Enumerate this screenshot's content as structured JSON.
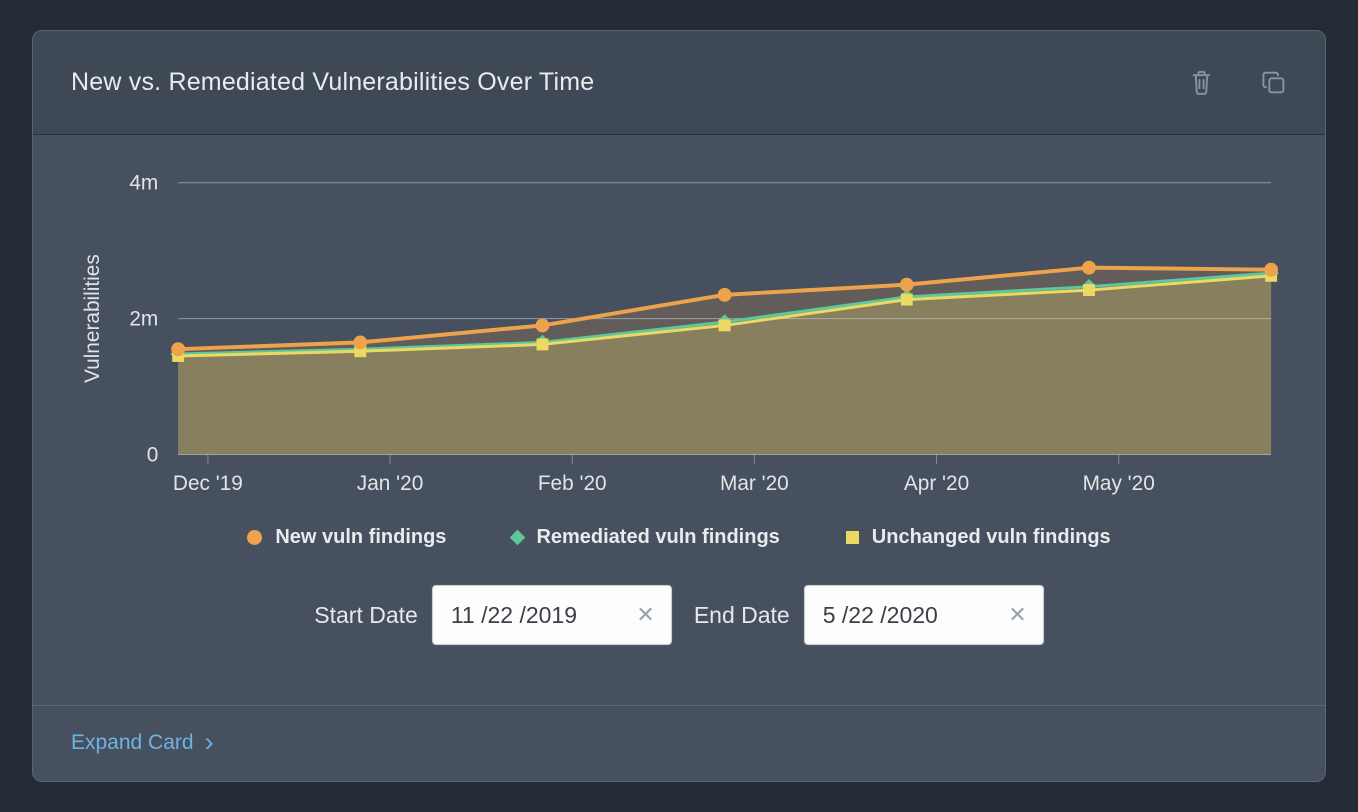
{
  "card": {
    "title": "New vs. Remediated Vulnerabilities Over Time"
  },
  "colors": {
    "new_series": "#eda24c",
    "remediated_series": "#5cc89b",
    "unchanged_series": "#ecd964",
    "link": "#6db3e3",
    "icon": "#8b94a1"
  },
  "chart_data": {
    "type": "line",
    "title": "New vs. Remediated Vulnerabilities Over Time",
    "xlabel": "",
    "ylabel": "Vulnerabilities",
    "unit": "millions",
    "grid": "horizontal",
    "legend_position": "bottom",
    "area_fill": true,
    "ylim": [
      0,
      4
    ],
    "y_ticks": [
      {
        "value": 0,
        "label": "0"
      },
      {
        "value": 2,
        "label": "2m"
      },
      {
        "value": 4,
        "label": "4m"
      }
    ],
    "x_tick_labels": [
      "Dec '19",
      "Jan '20",
      "Feb '20",
      "Mar '20",
      "Apr '20",
      "May '20"
    ],
    "series": [
      {
        "name": "New vuln findings",
        "color": "#eda24c",
        "marker": "circle",
        "values": [
          1.55,
          1.65,
          1.9,
          2.35,
          2.5,
          2.75,
          2.72
        ]
      },
      {
        "name": "Remediated vuln findings",
        "color": "#5cc89b",
        "marker": "diamond",
        "values": [
          1.48,
          1.55,
          1.65,
          1.95,
          2.32,
          2.47,
          2.67
        ]
      },
      {
        "name": "Unchanged vuln findings",
        "color": "#ecd964",
        "marker": "square",
        "values": [
          1.45,
          1.52,
          1.62,
          1.9,
          2.28,
          2.42,
          2.63
        ]
      }
    ]
  },
  "dates": {
    "start_label": "Start Date",
    "start_value": "11 /22 /2019",
    "end_label": "End Date",
    "end_value": "5 /22 /2020",
    "clear_icon": "✕"
  },
  "footer": {
    "expand_label": "Expand Card",
    "chevron": "›"
  }
}
